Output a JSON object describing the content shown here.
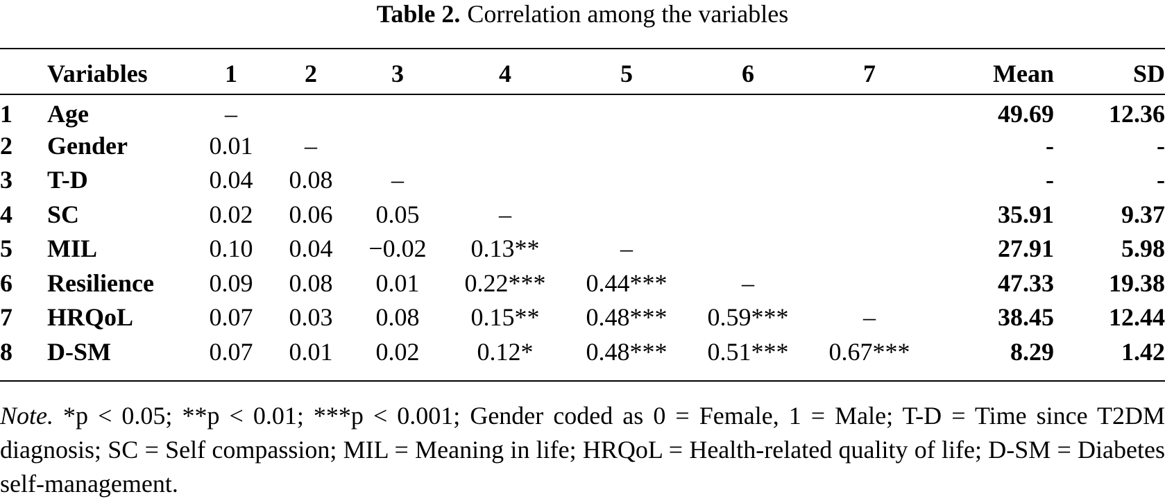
{
  "title": {
    "label": "Table 2.",
    "text": "Correlation among the variables"
  },
  "table": {
    "headers": [
      "",
      "Variables",
      "1",
      "2",
      "3",
      "4",
      "5",
      "6",
      "7",
      "Mean",
      "SD"
    ],
    "rows": [
      {
        "num": "1",
        "var": "Age",
        "cells": [
          "–",
          "",
          "",
          "",
          "",
          "",
          ""
        ],
        "mean": "49.69",
        "sd": "12.36"
      },
      {
        "num": "2",
        "var": "Gender",
        "cells": [
          "0.01",
          "–",
          "",
          "",
          "",
          "",
          ""
        ],
        "mean": "-",
        "sd": "-"
      },
      {
        "num": "3",
        "var": "T-D",
        "cells": [
          "0.04",
          "0.08",
          "–",
          "",
          "",
          "",
          ""
        ],
        "mean": "-",
        "sd": "-"
      },
      {
        "num": "4",
        "var": "SC",
        "cells": [
          "0.02",
          "0.06",
          "0.05",
          "–",
          "",
          "",
          ""
        ],
        "mean": "35.91",
        "sd": "9.37"
      },
      {
        "num": "5",
        "var": "MIL",
        "cells": [
          "0.10",
          "0.04",
          "−0.02",
          "0.13**",
          "–",
          "",
          ""
        ],
        "mean": "27.91",
        "sd": "5.98"
      },
      {
        "num": "6",
        "var": "Resilience",
        "cells": [
          "0.09",
          "0.08",
          "0.01",
          "0.22***",
          "0.44***",
          "–",
          ""
        ],
        "mean": "47.33",
        "sd": "19.38"
      },
      {
        "num": "7",
        "var": "HRQoL",
        "cells": [
          "0.07",
          "0.03",
          "0.08",
          "0.15**",
          "0.48***",
          "0.59***",
          "–"
        ],
        "mean": "38.45",
        "sd": "12.44"
      },
      {
        "num": "8",
        "var": "D-SM",
        "cells": [
          "0.07",
          "0.01",
          "0.02",
          "0.12*",
          "0.48***",
          "0.51***",
          "0.67***"
        ],
        "mean": "8.29",
        "sd": "1.42"
      }
    ]
  },
  "note": {
    "label": "Note.",
    "text": " *p < 0.05; **p < 0.01; ***p < 0.001; Gender coded as 0 = Female, 1 = Male; T-D = Time since T2DM diagnosis; SC = Self compassion; MIL = Meaning in life; HRQoL = Health-related quality of life; D-SM = Diabetes self-management."
  }
}
